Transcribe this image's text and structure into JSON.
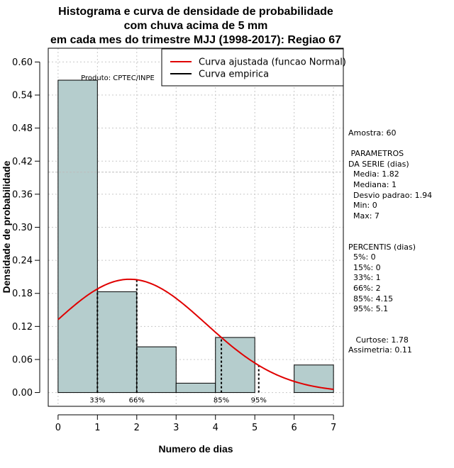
{
  "chart_data": {
    "type": "bar",
    "title_lines": [
      "Histograma e curva de densidade de probabilidade",
      "com chuva acima de 5 mm",
      "em cada mes do trimestre MJJ (1998-2017): Regiao 67"
    ],
    "xlabel": "Numero de dias",
    "ylabel": "Densidade de probabilidade",
    "xlim": [
      -0.25,
      7.25
    ],
    "ylim": [
      -0.025,
      0.625
    ],
    "x_ticks": [
      "0",
      "1",
      "2",
      "3",
      "4",
      "5",
      "6",
      "7"
    ],
    "y_ticks": [
      "0.00",
      "0.06",
      "0.12",
      "0.18",
      "0.24",
      "0.30",
      "0.36",
      "0.42",
      "0.48",
      "0.54",
      "0.60"
    ],
    "bins": [
      {
        "start": 0,
        "end": 1,
        "density": 0.567
      },
      {
        "start": 1,
        "end": 2,
        "density": 0.183
      },
      {
        "start": 2,
        "end": 3,
        "density": 0.083
      },
      {
        "start": 3,
        "end": 4,
        "density": 0.017
      },
      {
        "start": 4,
        "end": 5,
        "density": 0.1
      },
      {
        "start": 5,
        "end": 6,
        "density": 0.0
      },
      {
        "start": 6,
        "end": 7,
        "density": 0.05
      }
    ],
    "bar_color": "#b5cdcd",
    "normal_fit": {
      "mean": 1.82,
      "sd": 1.94,
      "color": "#e00000"
    },
    "percentile_lines": [
      {
        "label": "33%",
        "x": 1
      },
      {
        "label": "66%",
        "x": 2
      },
      {
        "label": "85%",
        "x": 4.15
      },
      {
        "label": "95%",
        "x": 5.1
      }
    ],
    "reference_line_y": 0.4,
    "product_label": "Produto: CPTEC/INPE",
    "legend": [
      {
        "label": "Curva ajustada (funcao Normal)",
        "color": "#e00000"
      },
      {
        "label": "Curva empirica",
        "color": "#000000"
      }
    ]
  },
  "stats_panel": {
    "amostra": "Amostra: 60",
    "param_header_1": " PARAMETROS",
    "param_header_2": "DA SERIE (dias)",
    "media": "  Media: 1.82",
    "mediana": "  Mediana: 1",
    "desvio": "  Desvio padrao: 1.94",
    "min": "  Min: 0",
    "max": "  Max: 7",
    "perc_header": "PERCENTIS (dias)",
    "p5": "  5%: 0",
    "p15": "  15%: 0",
    "p33": "  33%: 1",
    "p66": "  66%: 2",
    "p85": "  85%: 4.15",
    "p95": "  95%: 5.1",
    "curtose": "   Curtose: 1.78",
    "assimetria": "Assimetria: 0.11"
  }
}
